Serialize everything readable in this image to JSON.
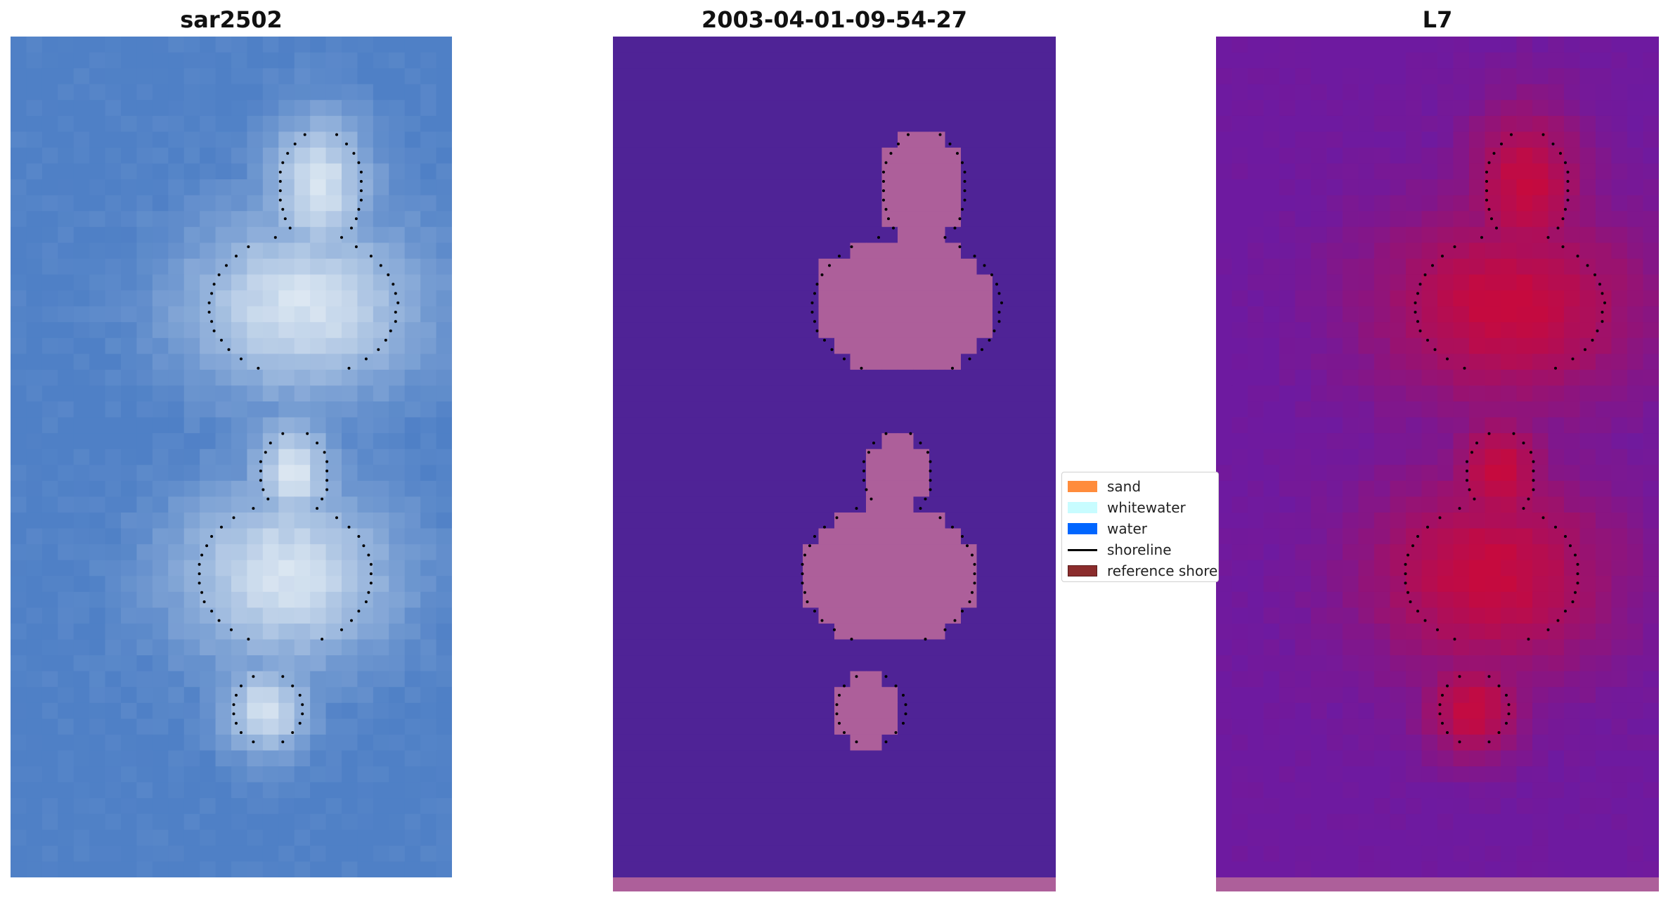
{
  "panels": [
    {
      "title": "sar2502"
    },
    {
      "title": "2003-04-01-09-54-27"
    },
    {
      "title": "L7"
    }
  ],
  "legend": {
    "items": [
      {
        "label": "sand",
        "color": "#ff8c3c",
        "kind": "patch"
      },
      {
        "label": "whitewater",
        "color": "#c8fcff",
        "kind": "patch"
      },
      {
        "label": "water",
        "color": "#0066ff",
        "kind": "patch"
      },
      {
        "label": "shoreline",
        "color": "#000000",
        "kind": "line"
      },
      {
        "label": "reference shoreline",
        "color": "#8b2c2c",
        "kind": "patch"
      }
    ]
  },
  "colors": {
    "rgb_water": "#4f80c6",
    "rgb_sand": "#dde8f2",
    "class_water": "#4f2396",
    "class_sand": "#ad5f9a",
    "index_low": "#6e1aa0",
    "index_high": "#c60a3e"
  }
}
